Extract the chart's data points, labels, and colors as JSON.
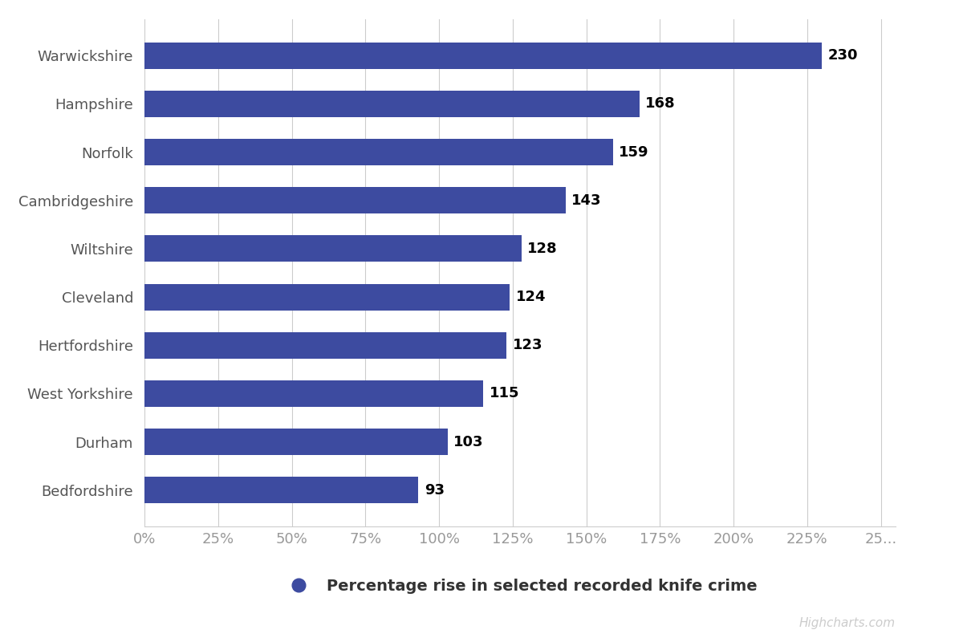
{
  "categories": [
    "Warwickshire",
    "Hampshire",
    "Norfolk",
    "Cambridgeshire",
    "Wiltshire",
    "Cleveland",
    "Hertfordshire",
    "West Yorkshire",
    "Durham",
    "Bedfordshire"
  ],
  "values": [
    230,
    168,
    159,
    143,
    128,
    124,
    123,
    115,
    103,
    93
  ],
  "bar_color": "#3D4BA0",
  "label_color": "#000000",
  "background_color": "#ffffff",
  "grid_color": "#cccccc",
  "legend_label": "Percentage rise in selected recorded knife crime",
  "legend_marker_color": "#3D4BA0",
  "x_tick_labels": [
    "0%",
    "25%",
    "50%",
    "75%",
    "100%",
    "125%",
    "150%",
    "175%",
    "200%",
    "225%",
    "25..."
  ],
  "x_tick_values": [
    0,
    25,
    50,
    75,
    100,
    125,
    150,
    175,
    200,
    225,
    250
  ],
  "xlim": [
    0,
    255
  ],
  "tick_label_fontsize": 13,
  "bar_label_fontsize": 13,
  "legend_fontsize": 14,
  "watermark": "Highcharts.com",
  "watermark_color": "#cccccc"
}
